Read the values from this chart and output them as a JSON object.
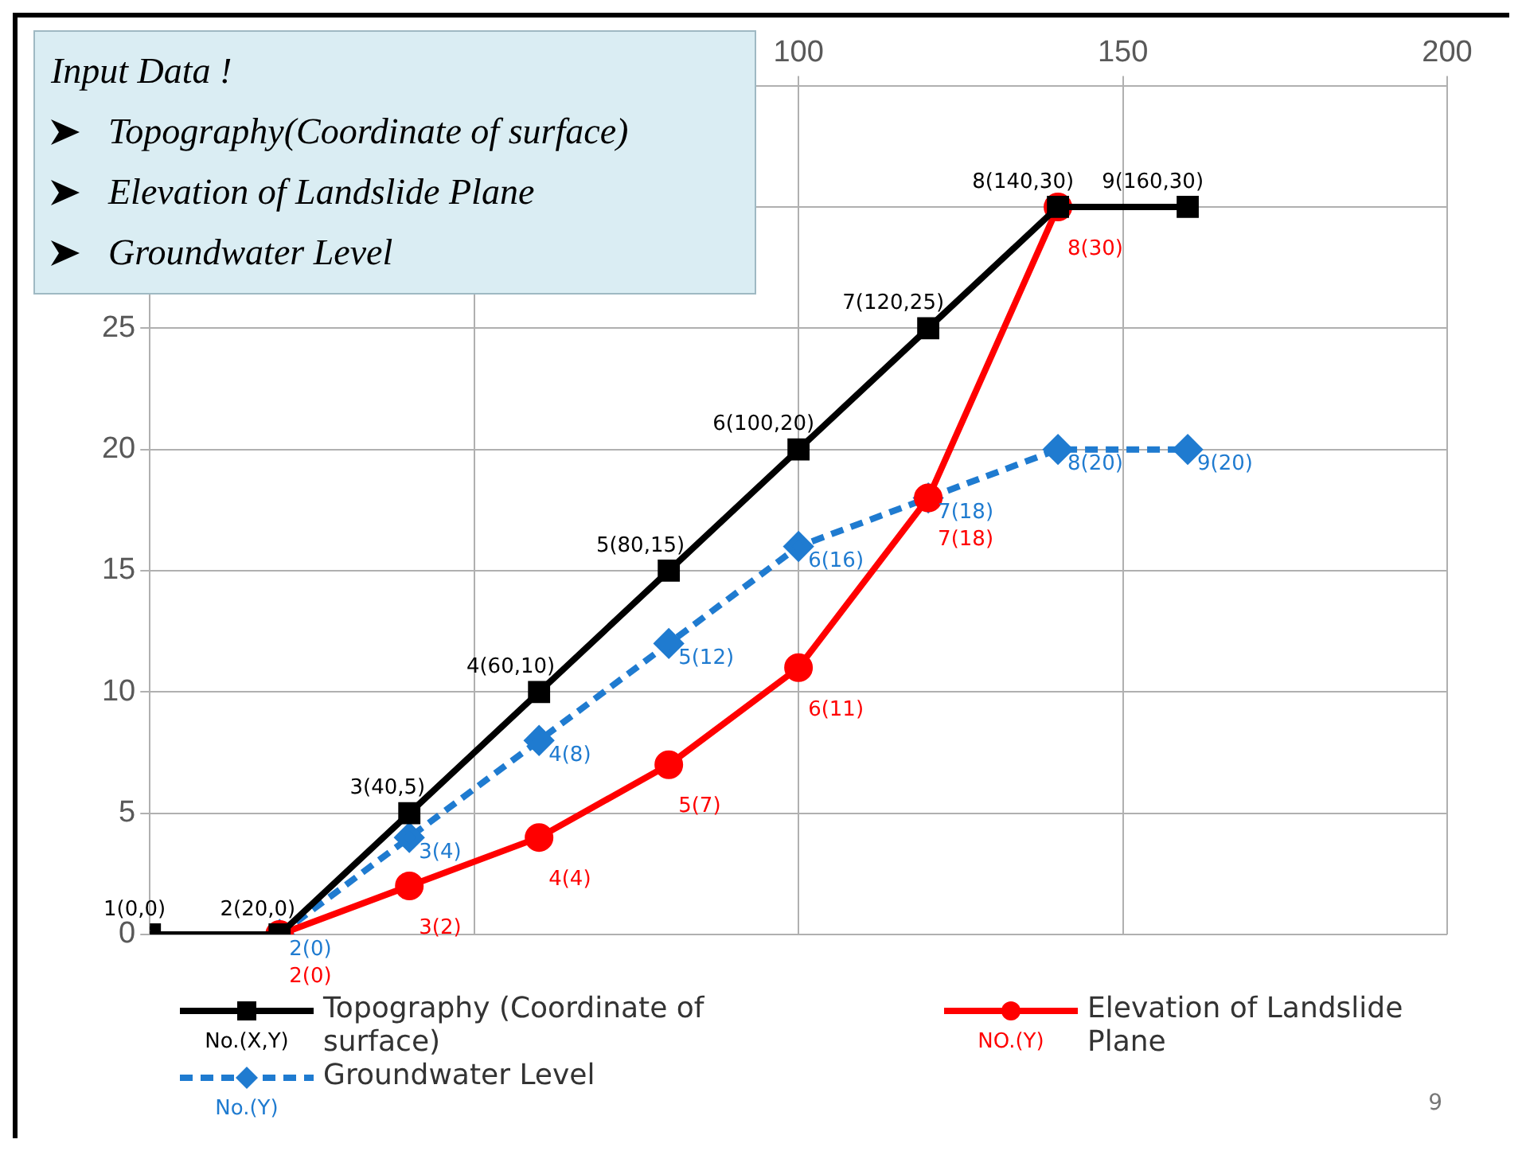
{
  "chart_data": {
    "type": "line",
    "annotations": [
      "Input Data !",
      "Topography(Coordinate of surface)",
      "Elevation of Landslide Plane",
      "Groundwater Level",
      "No.(X,Y)",
      "NO.(Y)",
      "No.(Y)",
      "9",
      {
        "text": "1(0,0)",
        "x": 0,
        "y": 0
      },
      {
        "text": "2(20,0)",
        "x": 20,
        "y": 0
      },
      {
        "text": "3(40,5)",
        "x": 40,
        "y": 5
      },
      {
        "text": "4(60,10)",
        "x": 60,
        "y": 10
      },
      {
        "text": "5(80,15)",
        "x": 80,
        "y": 15
      },
      {
        "text": "6(100,20)",
        "x": 100,
        "y": 20
      },
      {
        "text": "7(120,25)",
        "x": 120,
        "y": 25
      },
      {
        "text": "8(140,30)",
        "x": 140,
        "y": 30
      },
      {
        "text": "9(160,30)",
        "x": 160,
        "y": 30
      }
    ],
    "xlim": [
      0,
      200
    ],
    "xticks": [
      {
        "value": 0,
        "label": null
      },
      {
        "value": 50,
        "label": null
      },
      100,
      150,
      200
    ],
    "ylim": [
      0,
      35
    ],
    "yticks": [
      0,
      5,
      10,
      15,
      20,
      25,
      {
        "value": 30,
        "label": null
      },
      {
        "value": 35,
        "label": null
      }
    ],
    "grid": true,
    "legend": "bottom",
    "series": [
      {
        "name": "Topography (Coordinate of surface)",
        "color": "#000000",
        "marker": "square",
        "line_style": "solid",
        "x": [
          0,
          20,
          40,
          60,
          80,
          100,
          120,
          140,
          160
        ],
        "values": [
          0,
          0,
          5,
          10,
          15,
          20,
          25,
          30,
          30
        ]
      },
      {
        "name": "Elevation of Landslide Plane",
        "color": "#ff0000",
        "marker": "circle",
        "line_style": "solid",
        "x": [
          20,
          40,
          60,
          80,
          100,
          120,
          140
        ],
        "values": [
          0,
          2,
          4,
          7,
          11,
          18,
          30
        ],
        "value_labels": [
          "2(0)",
          "3(2)",
          "4(4)",
          "5(7)",
          "6(11)",
          "7(18)",
          "8(30)"
        ]
      },
      {
        "name": "Groundwater Level",
        "color": "#1f7bd0",
        "marker": "diamond",
        "line_style": "dashed",
        "x": [
          20,
          40,
          60,
          80,
          100,
          120,
          140,
          160
        ],
        "values": [
          0,
          4,
          8,
          12,
          16,
          18,
          20,
          20
        ],
        "value_labels": [
          "2(0)",
          "3(4)",
          "4(8)",
          "5(12)",
          "6(16)",
          "7(18)",
          "8(20)",
          "9(20)"
        ]
      }
    ]
  }
}
